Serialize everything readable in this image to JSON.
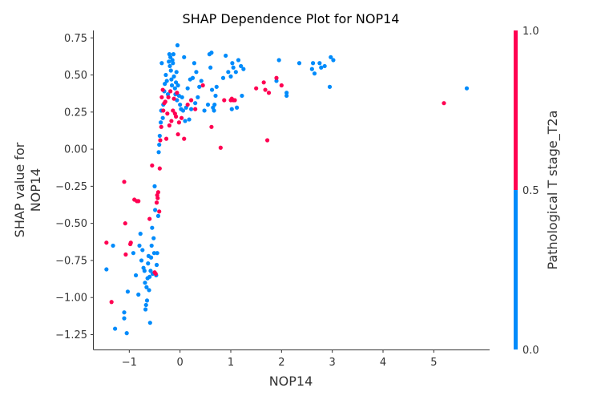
{
  "chart_data": {
    "type": "scatter",
    "title": "SHAP Dependence Plot for NOP14",
    "xlabel": "NOP14",
    "ylabel_lines": [
      "SHAP value for",
      "NOP14"
    ],
    "xlim": [
      -1.7,
      6.1
    ],
    "ylim": [
      -1.35,
      0.8
    ],
    "x_ticks": [
      -1,
      0,
      1,
      2,
      3,
      4,
      5
    ],
    "x_tick_labels": [
      "−1",
      "0",
      "1",
      "2",
      "3",
      "4",
      "5"
    ],
    "y_ticks": [
      -1.25,
      -1.0,
      -0.75,
      -0.5,
      -0.25,
      0.0,
      0.25,
      0.5,
      0.75
    ],
    "y_tick_labels": [
      "−1.25",
      "−1.00",
      "−0.75",
      "−0.50",
      "−0.25",
      "0.00",
      "0.25",
      "0.50",
      "0.75"
    ],
    "grid": false,
    "colorbar": {
      "label": "Pathological T stage_T2a",
      "ticks": [
        0.0,
        0.5,
        1.0
      ],
      "tick_labels": [
        "0.0",
        "0.5",
        "1.0"
      ],
      "low_color": "#008bfb",
      "high_color": "#ff0052"
    },
    "series": [
      {
        "color": "#008bfb",
        "points": [
          [
            -1.45,
            -0.81
          ],
          [
            -1.32,
            -0.65
          ],
          [
            -1.28,
            -1.21
          ],
          [
            -1.1,
            -1.14
          ],
          [
            -1.1,
            -1.1
          ],
          [
            -1.05,
            -1.24
          ],
          [
            -1.03,
            -0.96
          ],
          [
            -0.92,
            -0.7
          ],
          [
            -0.87,
            -0.85
          ],
          [
            -0.82,
            -0.98
          ],
          [
            -0.8,
            -0.65
          ],
          [
            -0.78,
            -0.57
          ],
          [
            -0.76,
            -0.75
          ],
          [
            -0.74,
            -0.68
          ],
          [
            -0.72,
            -0.8
          ],
          [
            -0.7,
            -0.82
          ],
          [
            -0.69,
            -0.9
          ],
          [
            -0.68,
            -1.08
          ],
          [
            -0.67,
            -1.05
          ],
          [
            -0.66,
            -0.93
          ],
          [
            -0.65,
            -1.02
          ],
          [
            -0.64,
            -0.87
          ],
          [
            -0.63,
            -0.77
          ],
          [
            -0.62,
            -0.72
          ],
          [
            -0.61,
            -0.95
          ],
          [
            -0.6,
            -0.86
          ],
          [
            -0.59,
            -1.17
          ],
          [
            -0.58,
            -0.82
          ],
          [
            -0.57,
            -0.73
          ],
          [
            -0.56,
            -0.65
          ],
          [
            -0.55,
            -0.53
          ],
          [
            -0.54,
            -0.84
          ],
          [
            -0.52,
            -0.6
          ],
          [
            -0.51,
            -0.7
          ],
          [
            -0.5,
            -0.25
          ],
          [
            -0.49,
            -0.41
          ],
          [
            -0.47,
            -0.85
          ],
          [
            -0.46,
            -0.78
          ],
          [
            -0.45,
            -0.7
          ],
          [
            -0.43,
            -0.45
          ],
          [
            -0.42,
            -0.02
          ],
          [
            -0.41,
            0.03
          ],
          [
            -0.4,
            0.09
          ],
          [
            -0.38,
            0.18
          ],
          [
            -0.37,
            0.26
          ],
          [
            -0.36,
            0.58
          ],
          [
            -0.34,
            0.21
          ],
          [
            -0.33,
            0.3
          ],
          [
            -0.31,
            0.39
          ],
          [
            -0.3,
            0.44
          ],
          [
            -0.28,
            0.5
          ],
          [
            -0.26,
            0.46
          ],
          [
            -0.24,
            0.37
          ],
          [
            -0.22,
            0.59
          ],
          [
            -0.21,
            0.64
          ],
          [
            -0.2,
            0.56
          ],
          [
            -0.19,
            0.62
          ],
          [
            -0.18,
            0.53
          ],
          [
            -0.17,
            0.47
          ],
          [
            -0.16,
            0.43
          ],
          [
            -0.15,
            0.6
          ],
          [
            -0.14,
            0.58
          ],
          [
            -0.13,
            0.64
          ],
          [
            -0.12,
            0.49
          ],
          [
            -0.1,
            0.41
          ],
          [
            -0.09,
            0.37
          ],
          [
            -0.08,
            0.45
          ],
          [
            -0.07,
            0.52
          ],
          [
            -0.06,
            0.33
          ],
          [
            -0.05,
            0.7
          ],
          [
            -0.04,
            0.43
          ],
          [
            -0.02,
            0.36
          ],
          [
            0.0,
            0.3
          ],
          [
            0.02,
            0.27
          ],
          [
            0.04,
            0.35
          ],
          [
            0.06,
            0.26
          ],
          [
            0.08,
            0.62
          ],
          [
            0.1,
            0.19
          ],
          [
            0.12,
            0.28
          ],
          [
            0.15,
            0.41
          ],
          [
            0.18,
            0.2
          ],
          [
            0.2,
            0.47
          ],
          [
            0.22,
            0.27
          ],
          [
            0.25,
            0.48
          ],
          [
            0.28,
            0.58
          ],
          [
            0.3,
            0.31
          ],
          [
            0.32,
            0.52
          ],
          [
            0.35,
            0.35
          ],
          [
            0.38,
            0.42
          ],
          [
            0.42,
            0.46
          ],
          [
            0.48,
            0.26
          ],
          [
            0.55,
            0.3
          ],
          [
            0.58,
            0.64
          ],
          [
            0.6,
            0.55
          ],
          [
            0.62,
            0.65
          ],
          [
            0.63,
            0.4
          ],
          [
            0.65,
            0.28
          ],
          [
            0.67,
            0.26
          ],
          [
            0.68,
            0.3
          ],
          [
            0.7,
            0.36
          ],
          [
            0.72,
            0.42
          ],
          [
            0.85,
            0.48
          ],
          [
            0.9,
            0.63
          ],
          [
            0.95,
            0.52
          ],
          [
            1.0,
            0.49
          ],
          [
            1.02,
            0.27
          ],
          [
            1.03,
            0.58
          ],
          [
            1.05,
            0.55
          ],
          [
            1.1,
            0.52
          ],
          [
            1.12,
            0.28
          ],
          [
            1.15,
            0.6
          ],
          [
            1.2,
            0.56
          ],
          [
            1.22,
            0.36
          ],
          [
            1.25,
            0.54
          ],
          [
            1.9,
            0.46
          ],
          [
            1.95,
            0.6
          ],
          [
            2.1,
            0.36
          ],
          [
            2.1,
            0.38
          ],
          [
            2.35,
            0.58
          ],
          [
            2.6,
            0.54
          ],
          [
            2.62,
            0.58
          ],
          [
            2.65,
            0.51
          ],
          [
            2.75,
            0.58
          ],
          [
            2.78,
            0.55
          ],
          [
            2.85,
            0.56
          ],
          [
            2.95,
            0.42
          ],
          [
            2.97,
            0.62
          ],
          [
            3.02,
            0.6
          ],
          [
            5.65,
            0.41
          ]
        ]
      },
      {
        "color": "#ff0052",
        "points": [
          [
            -1.45,
            -0.63
          ],
          [
            -1.35,
            -1.03
          ],
          [
            -1.1,
            -0.22
          ],
          [
            -1.08,
            -0.5
          ],
          [
            -1.07,
            -0.71
          ],
          [
            -0.98,
            -0.64
          ],
          [
            -0.97,
            -0.63
          ],
          [
            -0.9,
            -0.34
          ],
          [
            -0.85,
            -0.35
          ],
          [
            -0.82,
            -0.35
          ],
          [
            -0.6,
            -0.47
          ],
          [
            -0.55,
            -0.11
          ],
          [
            -0.5,
            -0.83
          ],
          [
            -0.48,
            -0.84
          ],
          [
            -0.46,
            -0.36
          ],
          [
            -0.45,
            -0.31
          ],
          [
            -0.44,
            -0.33
          ],
          [
            -0.43,
            -0.29
          ],
          [
            -0.41,
            -0.42
          ],
          [
            -0.4,
            -0.13
          ],
          [
            -0.39,
            0.06
          ],
          [
            -0.37,
            0.15
          ],
          [
            -0.36,
            0.35
          ],
          [
            -0.34,
            0.4
          ],
          [
            -0.33,
            0.26
          ],
          [
            -0.31,
            0.31
          ],
          [
            -0.29,
            0.32
          ],
          [
            -0.27,
            0.07
          ],
          [
            -0.25,
            0.24
          ],
          [
            -0.23,
            0.35
          ],
          [
            -0.21,
            0.16
          ],
          [
            -0.19,
            0.39
          ],
          [
            -0.17,
            0.19
          ],
          [
            -0.14,
            0.26
          ],
          [
            -0.12,
            0.34
          ],
          [
            -0.1,
            0.24
          ],
          [
            -0.08,
            0.22
          ],
          [
            -0.06,
            0.38
          ],
          [
            -0.04,
            0.1
          ],
          [
            -0.02,
            0.18
          ],
          [
            0.03,
            0.21
          ],
          [
            0.08,
            0.07
          ],
          [
            0.15,
            0.3
          ],
          [
            0.22,
            0.33
          ],
          [
            0.3,
            0.27
          ],
          [
            0.45,
            0.43
          ],
          [
            0.62,
            0.15
          ],
          [
            0.8,
            0.01
          ],
          [
            0.87,
            0.33
          ],
          [
            1.0,
            0.33
          ],
          [
            1.02,
            0.34
          ],
          [
            1.05,
            0.33
          ],
          [
            1.08,
            0.33
          ],
          [
            1.5,
            0.41
          ],
          [
            1.65,
            0.45
          ],
          [
            1.68,
            0.4
          ],
          [
            1.72,
            0.06
          ],
          [
            1.75,
            0.38
          ],
          [
            1.9,
            0.48
          ],
          [
            2.0,
            0.43
          ],
          [
            5.2,
            0.31
          ]
        ]
      }
    ]
  }
}
